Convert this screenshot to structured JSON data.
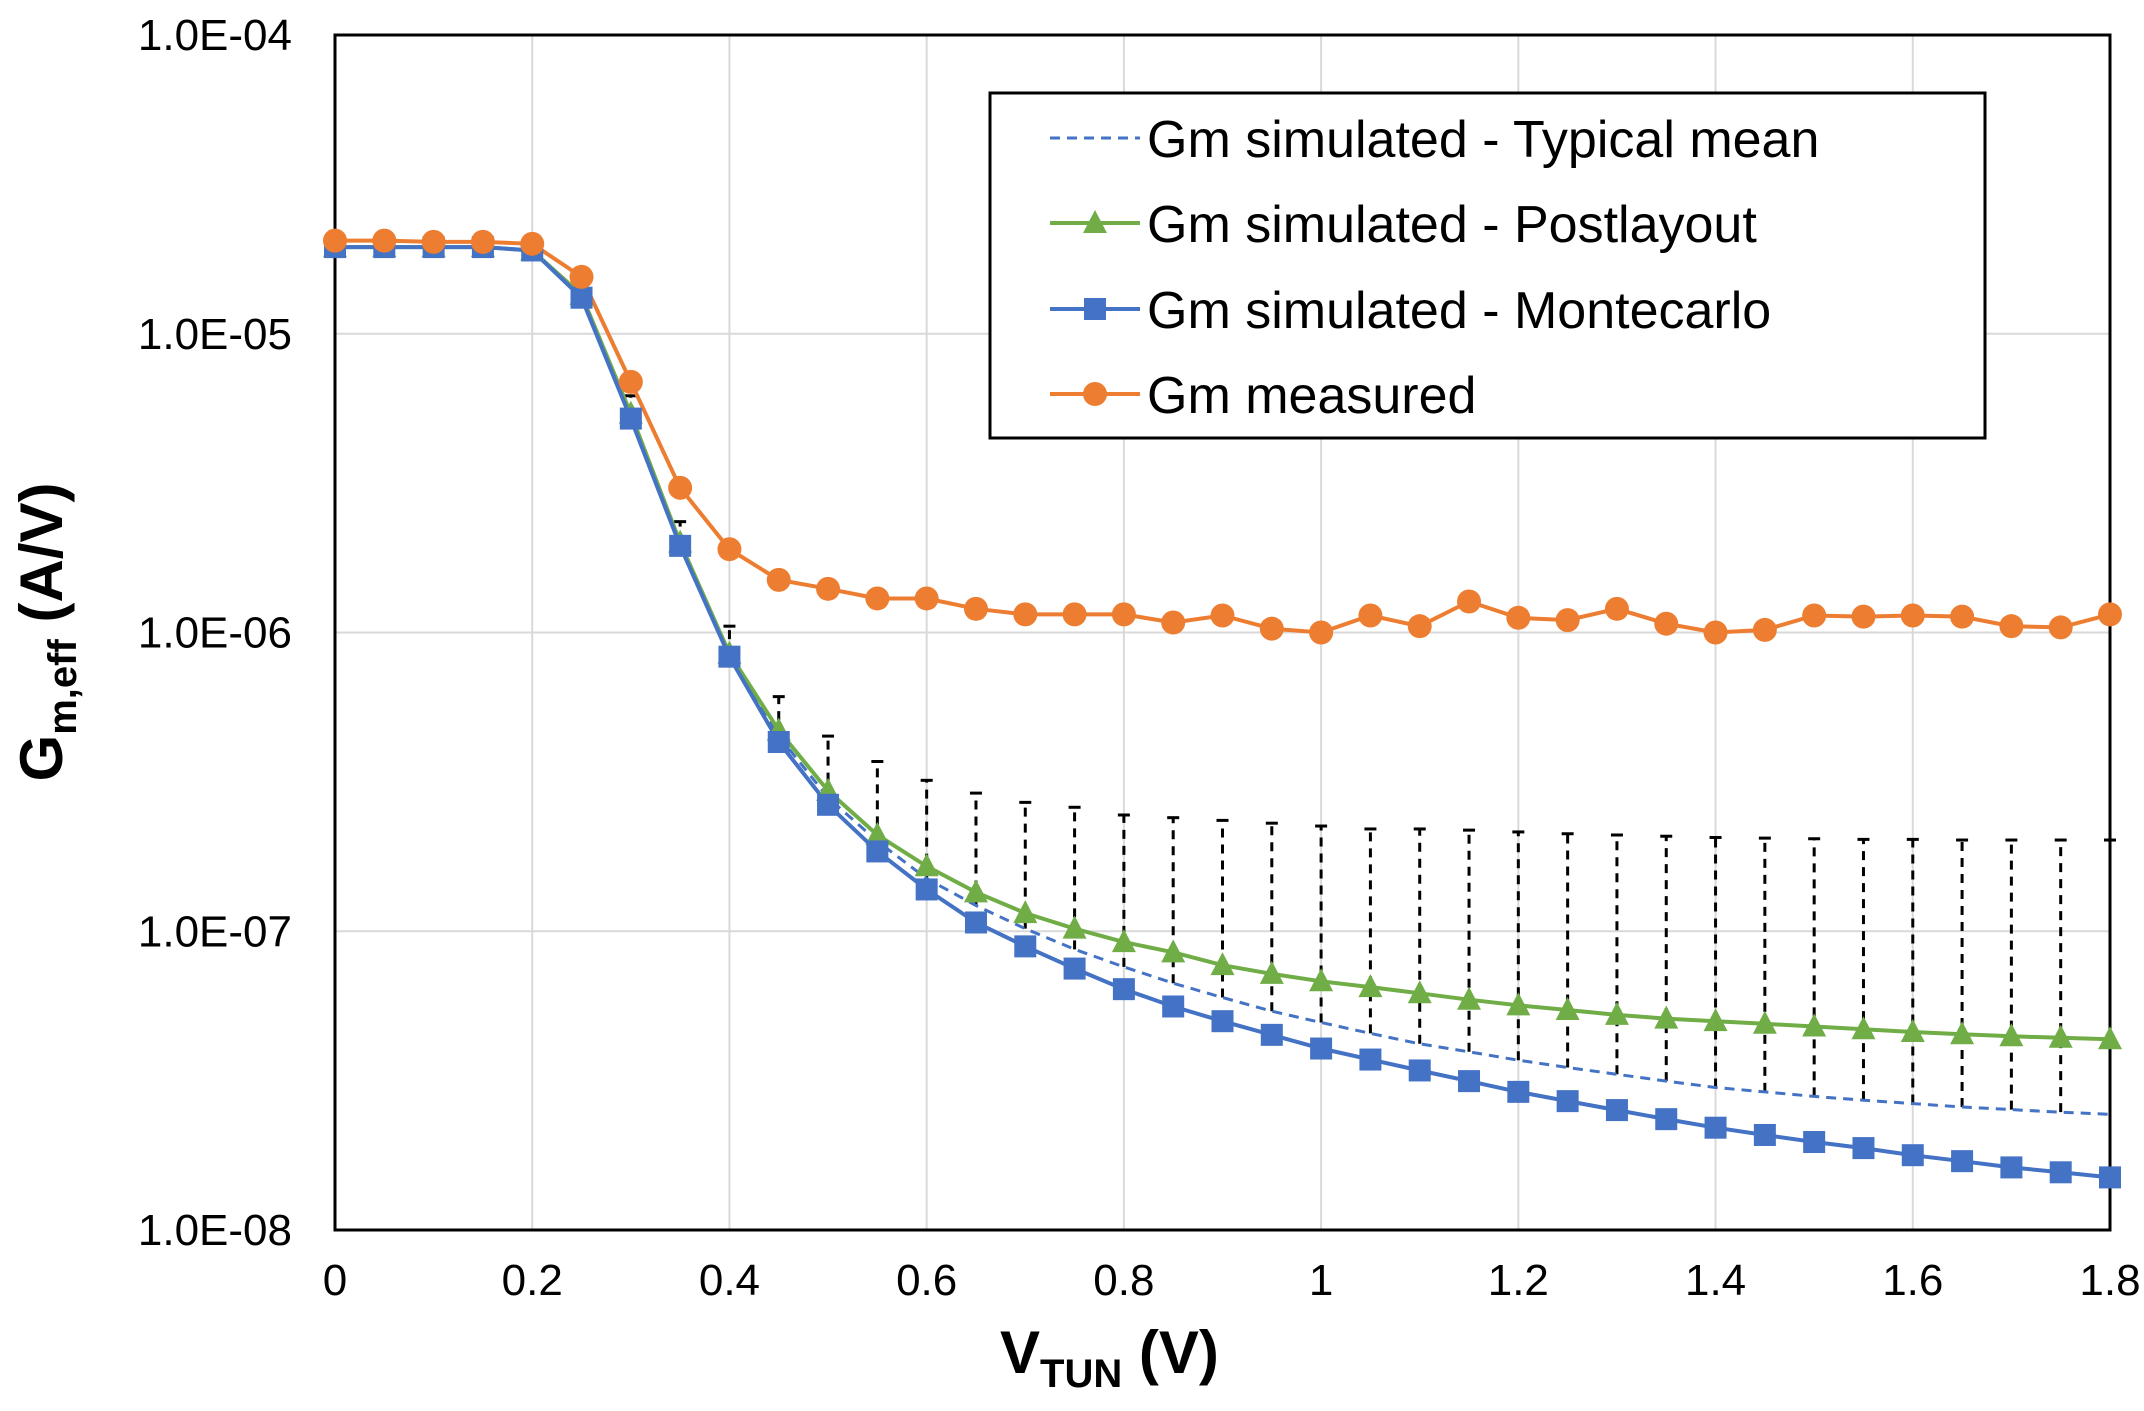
{
  "chart_data": {
    "type": "line",
    "title": "",
    "xlabel": {
      "main": "V",
      "sub": "TUN",
      "unit": " (V)"
    },
    "ylabel": {
      "main": "G",
      "sub": "m,eff",
      "unit": " (A/V)"
    },
    "xlim": [
      0,
      1.8
    ],
    "ylim": [
      1e-08,
      0.0001
    ],
    "yscale": "log",
    "grid": true,
    "legend_position": "top-right",
    "x_ticks": [
      "0",
      "0.2",
      "0.4",
      "0.6",
      "0.8",
      "1",
      "1.2",
      "1.4",
      "1.6",
      "1.8"
    ],
    "y_ticks": [
      "1.0E-08",
      "1.0E-07",
      "1.0E-06",
      "1.0E-05",
      "1.0E-04"
    ],
    "colors": {
      "typical": "#4472C4",
      "postlayout": "#70AD47",
      "montecarlo": "#4472C4",
      "measured": "#ED7D31",
      "grid": "#D9D9D9",
      "errorbar": "#000000"
    },
    "x": [
      0,
      0.05,
      0.1,
      0.15,
      0.2,
      0.25,
      0.3,
      0.35,
      0.4,
      0.45,
      0.5,
      0.55,
      0.6,
      0.65,
      0.7,
      0.75,
      0.8,
      0.85,
      0.9,
      0.95,
      1.0,
      1.05,
      1.1,
      1.15,
      1.2,
      1.25,
      1.3,
      1.35,
      1.4,
      1.45,
      1.5,
      1.55,
      1.6,
      1.65,
      1.7,
      1.75,
      1.8
    ],
    "series": [
      {
        "key": "typical",
        "name": "Gm simulated - Typical mean",
        "style": "dashed",
        "marker": "none",
        "values": [
          1.95e-05,
          1.95e-05,
          1.95e-05,
          1.95e-05,
          1.9e-05,
          1.35e-05,
          5.4e-06,
          2e-06,
          8.4e-07,
          4.5e-07,
          2.8e-07,
          2e-07,
          1.5e-07,
          1.22e-07,
          1.02e-07,
          8.7e-08,
          7.6e-08,
          6.7e-08,
          6e-08,
          5.4e-08,
          4.95e-08,
          4.55e-08,
          4.2e-08,
          3.95e-08,
          3.7e-08,
          3.5e-08,
          3.32e-08,
          3.15e-08,
          3e-08,
          2.9e-08,
          2.8e-08,
          2.72e-08,
          2.65e-08,
          2.58e-08,
          2.53e-08,
          2.48e-08,
          2.44e-08
        ]
      },
      {
        "key": "postlayout",
        "name": "Gm simulated - Postlayout",
        "style": "solid",
        "marker": "triangle",
        "values": [
          1.95e-05,
          1.95e-05,
          1.95e-05,
          1.95e-05,
          1.9e-05,
          1.35e-05,
          5.4e-06,
          2e-06,
          8.5e-07,
          4.7e-07,
          2.95e-07,
          2.1e-07,
          1.65e-07,
          1.35e-07,
          1.15e-07,
          1.02e-07,
          9.2e-08,
          8.5e-08,
          7.7e-08,
          7.2e-08,
          6.8e-08,
          6.5e-08,
          6.2e-08,
          5.9e-08,
          5.65e-08,
          5.45e-08,
          5.25e-08,
          5.1e-08,
          5e-08,
          4.9e-08,
          4.8e-08,
          4.7e-08,
          4.6e-08,
          4.52e-08,
          4.45e-08,
          4.4e-08,
          4.35e-08
        ]
      },
      {
        "key": "montecarlo",
        "name": "Gm simulated - Montecarlo",
        "style": "solid",
        "marker": "square",
        "values": [
          1.95e-05,
          1.95e-05,
          1.95e-05,
          1.95e-05,
          1.9e-05,
          1.32e-05,
          5.2e-06,
          1.95e-06,
          8.3e-07,
          4.3e-07,
          2.65e-07,
          1.85e-07,
          1.38e-07,
          1.07e-07,
          8.9e-08,
          7.5e-08,
          6.4e-08,
          5.6e-08,
          5e-08,
          4.5e-08,
          4.05e-08,
          3.72e-08,
          3.42e-08,
          3.15e-08,
          2.9e-08,
          2.7e-08,
          2.52e-08,
          2.35e-08,
          2.2e-08,
          2.08e-08,
          1.97e-08,
          1.88e-08,
          1.78e-08,
          1.7e-08,
          1.62e-08,
          1.56e-08,
          1.5e-08
        ]
      },
      {
        "key": "measured",
        "name": "Gm measured",
        "style": "solid",
        "marker": "circle",
        "values": [
          2.05e-05,
          2.05e-05,
          2.03e-05,
          2.03e-05,
          2e-05,
          1.55e-05,
          6.9e-06,
          3.05e-06,
          1.9e-06,
          1.5e-06,
          1.4e-06,
          1.3e-06,
          1.3e-06,
          1.2e-06,
          1.15e-06,
          1.15e-06,
          1.15e-06,
          1.08e-06,
          1.14e-06,
          1.03e-06,
          1e-06,
          1.14e-06,
          1.05e-06,
          1.27e-06,
          1.12e-06,
          1.1e-06,
          1.2e-06,
          1.07e-06,
          1e-06,
          1.02e-06,
          1.14e-06,
          1.13e-06,
          1.14e-06,
          1.13e-06,
          1.05e-06,
          1.04e-06,
          1.15e-06
        ]
      }
    ],
    "error_bars": {
      "x": [
        0.3,
        0.35,
        0.4,
        0.45,
        0.5,
        0.55,
        0.6,
        0.65,
        0.7,
        0.75,
        0.8,
        0.85,
        0.9,
        0.95,
        1.0,
        1.05,
        1.1,
        1.15,
        1.2,
        1.25,
        1.3,
        1.35,
        1.4,
        1.45,
        1.5,
        1.55,
        1.6,
        1.65,
        1.7,
        1.75,
        1.8
      ],
      "low": [
        5.4e-06,
        2e-06,
        8.4e-07,
        4.5e-07,
        2.8e-07,
        2e-07,
        1.5e-07,
        1.22e-07,
        1.02e-07,
        8.7e-08,
        7.6e-08,
        6.7e-08,
        6e-08,
        5.4e-08,
        4.95e-08,
        4.55e-08,
        4.2e-08,
        3.95e-08,
        3.7e-08,
        3.5e-08,
        3.32e-08,
        3.15e-08,
        3e-08,
        2.9e-08,
        2.8e-08,
        2.72e-08,
        2.65e-08,
        2.58e-08,
        2.53e-08,
        2.48e-08,
        2.44e-08
      ],
      "high": [
        6.2e-06,
        2.35e-06,
        1.05e-06,
        6.1e-07,
        4.5e-07,
        3.7e-07,
        3.2e-07,
        2.9e-07,
        2.7e-07,
        2.6e-07,
        2.45e-07,
        2.4e-07,
        2.35e-07,
        2.3e-07,
        2.25e-07,
        2.2e-07,
        2.2e-07,
        2.18e-07,
        2.15e-07,
        2.12e-07,
        2.1e-07,
        2.08e-07,
        2.06e-07,
        2.05e-07,
        2.04e-07,
        2.03e-07,
        2.03e-07,
        2.02e-07,
        2.02e-07,
        2.02e-07,
        2.02e-07
      ]
    }
  }
}
